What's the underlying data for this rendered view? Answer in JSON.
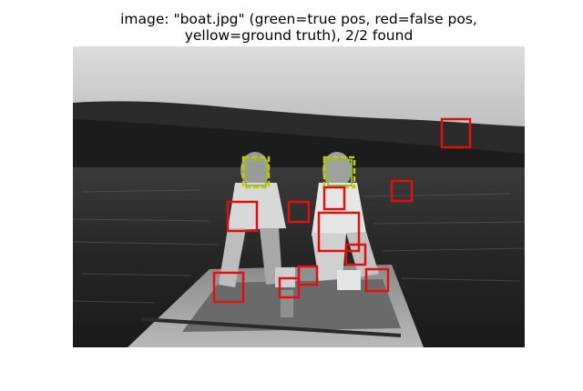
{
  "figure": {
    "title_line_1": "image: \"boat.jpg\" (green=true pos, red=false pos,",
    "title_line_2": "yellow=ground truth), 2/2 found"
  },
  "image": {
    "filename": "boat.jpg",
    "content": "grayscale photograph of two people in a small boat on a lake"
  },
  "legend_colors": {
    "true_positive": "#9acd32",
    "false_positive": "#e01010",
    "ground_truth": "#d4d400"
  },
  "summary": {
    "found": 2,
    "total": 2
  }
}
